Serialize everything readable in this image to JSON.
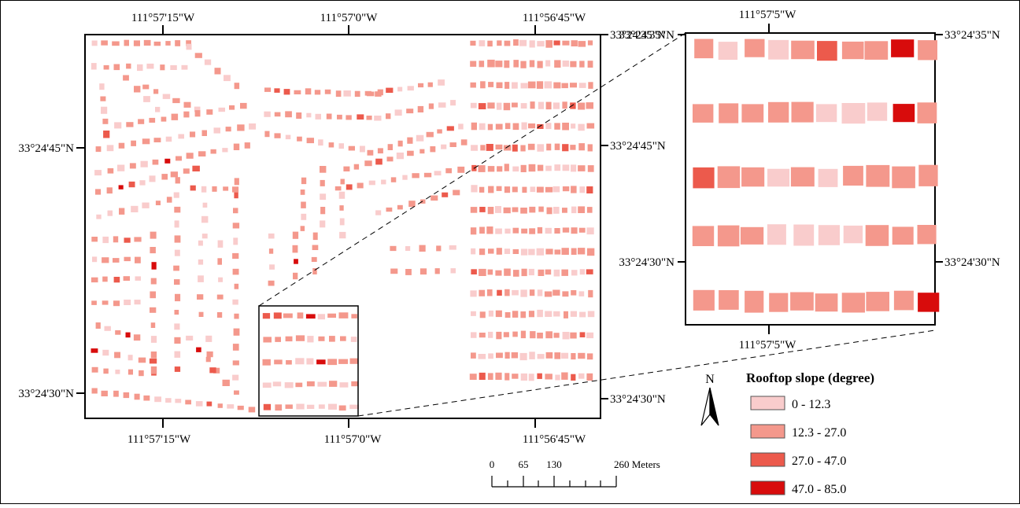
{
  "main_map": {
    "top_ticks": [
      "111°57'15\"W",
      "111°57'0\"W",
      "111°56'45\"W"
    ],
    "bottom_ticks": [
      "111°57'15\"W",
      "111°57'0\"W",
      "111°56'45\"W"
    ],
    "left_ticks": [
      "33°24'45\"N",
      "33°24'30\"N"
    ],
    "right_ticks": [
      "33°24'35\"N",
      "33°24'45\"N",
      "33°24'30\"N"
    ]
  },
  "inset_map": {
    "top_tick": "111°57'5\"W",
    "bottom_tick": "111°57'5\"W",
    "left_ticks": [
      "33°24'35\"N",
      "33°24'30\"N"
    ],
    "right_ticks": [
      "33°24'35\"N",
      "33°24'30\"N"
    ]
  },
  "north_arrow": {
    "label": "N"
  },
  "scale_bar": {
    "labels": [
      "0",
      "65",
      "130",
      "260 Meters"
    ]
  },
  "legend": {
    "title": "Rooftop slope (degree)",
    "classes": [
      {
        "label": "0 - 12.3",
        "color": "#f9cccc"
      },
      {
        "label": "12.3 - 27.0",
        "color": "#f4988c"
      },
      {
        "label": "27.0 - 47.0",
        "color": "#ec5a4c"
      },
      {
        "label": "47.0 - 85.0",
        "color": "#d80c0c"
      }
    ]
  }
}
